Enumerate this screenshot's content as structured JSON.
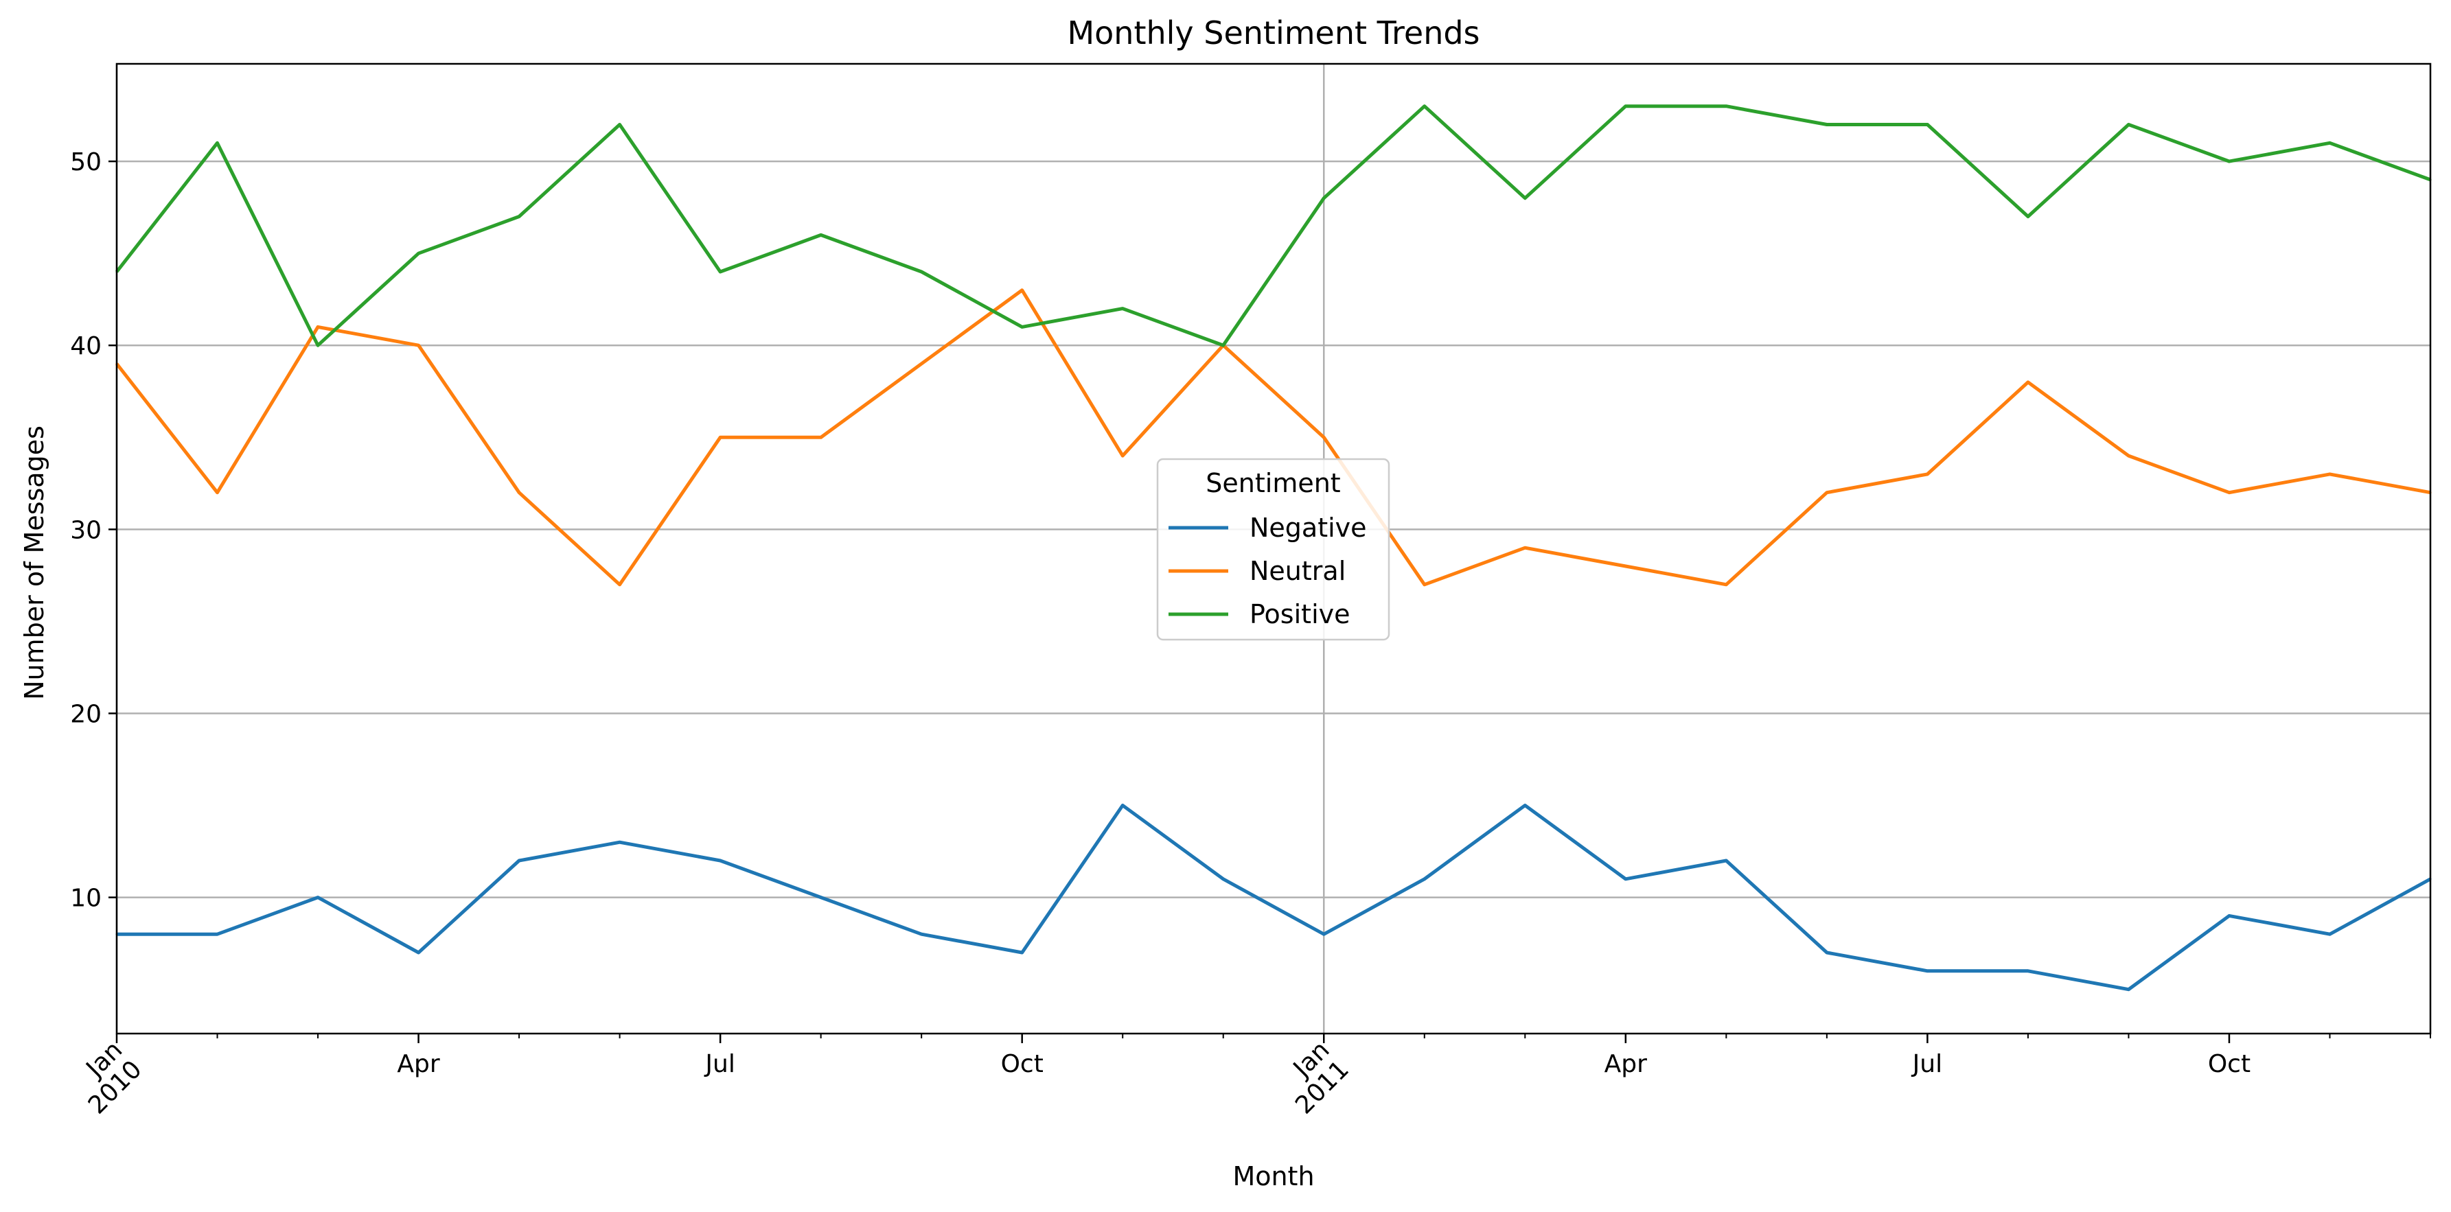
{
  "chart_data": {
    "type": "line",
    "title": "Monthly Sentiment Trends",
    "xlabel": "Month",
    "ylabel": "Number of Messages",
    "x": [
      "2010-01",
      "2010-02",
      "2010-03",
      "2010-04",
      "2010-05",
      "2010-06",
      "2010-07",
      "2010-08",
      "2010-09",
      "2010-10",
      "2010-11",
      "2010-12",
      "2011-01",
      "2011-02",
      "2011-03",
      "2011-04",
      "2011-05",
      "2011-06",
      "2011-07",
      "2011-08",
      "2011-09",
      "2011-10",
      "2011-11",
      "2011-12"
    ],
    "xlim": [
      "2010-01",
      "2011-12"
    ],
    "ylim": [
      2.6,
      55.3
    ],
    "yticks": [
      10,
      20,
      30,
      40,
      50
    ],
    "xticks": [
      {
        "month": "2010-01",
        "label": "Jan",
        "sublabel": "2010",
        "major": true
      },
      {
        "month": "2010-04",
        "label": "Apr",
        "major": false
      },
      {
        "month": "2010-07",
        "label": "Jul",
        "major": false
      },
      {
        "month": "2010-10",
        "label": "Oct",
        "major": false
      },
      {
        "month": "2011-01",
        "label": "Jan",
        "sublabel": "2011",
        "major": true
      },
      {
        "month": "2011-04",
        "label": "Apr",
        "major": false
      },
      {
        "month": "2011-07",
        "label": "Jul",
        "major": false
      },
      {
        "month": "2011-10",
        "label": "Oct",
        "major": false
      }
    ],
    "grid": true,
    "legend": {
      "title": "Sentiment",
      "position": "center"
    },
    "series": [
      {
        "name": "Negative",
        "color": "#1f77b4",
        "values": [
          8,
          8,
          10,
          7,
          12,
          13,
          12,
          10,
          8,
          7,
          15,
          11,
          8,
          11,
          15,
          11,
          12,
          7,
          6,
          6,
          5,
          9,
          8,
          11
        ]
      },
      {
        "name": "Neutral",
        "color": "#ff7f0e",
        "values": [
          39,
          32,
          41,
          40,
          32,
          27,
          35,
          35,
          39,
          43,
          34,
          40,
          35,
          27,
          29,
          28,
          27,
          32,
          33,
          38,
          34,
          32,
          33,
          32
        ]
      },
      {
        "name": "Positive",
        "color": "#2ca02c",
        "values": [
          44,
          51,
          40,
          45,
          47,
          52,
          44,
          46,
          44,
          41,
          42,
          40,
          48,
          53,
          48,
          53,
          53,
          52,
          52,
          47,
          52,
          50,
          51,
          49
        ]
      }
    ]
  }
}
